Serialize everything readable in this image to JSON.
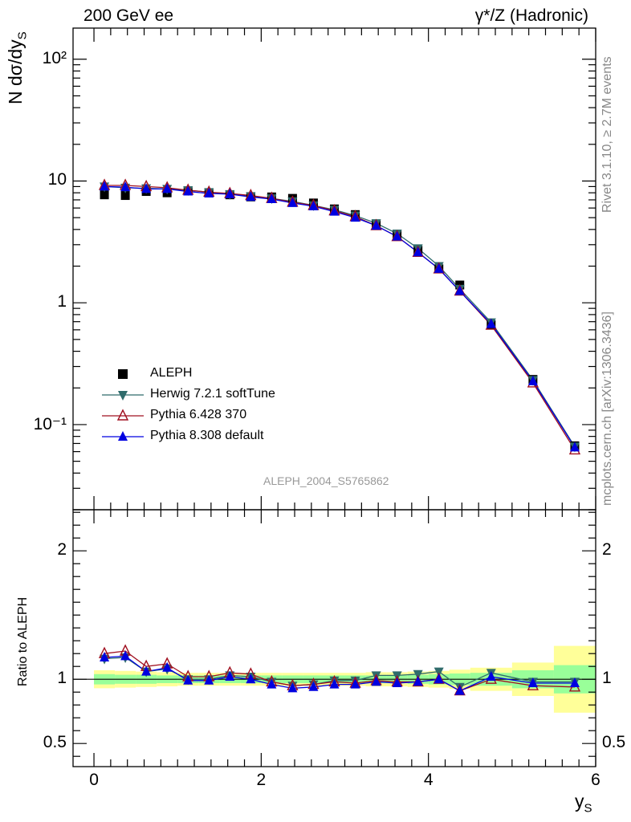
{
  "header": {
    "left_title": "200 GeV ee",
    "right_title": "γ*/Z (Hadronic)"
  },
  "side_texts": {
    "rivet": "Rivet 3.1.10, ≥ 2.7M events",
    "mcplots": "mcplots.cern.ch [arXiv:1306.3436]"
  },
  "watermark": "ALEPH_2004_S5765862",
  "colors": {
    "aleph": "#000000",
    "herwig": "#2f6b6b",
    "pythia6": "#a01020",
    "pythia8": "#0000e0",
    "band_inner": "#99ff99",
    "band_outer": "#ffff99"
  },
  "chart_data": [
    {
      "type": "scatter",
      "panel": "main",
      "title": "",
      "ylabel": "N dσ/dy_S",
      "xlabel": "",
      "yscale": "log",
      "xlim": [
        -0.25,
        6.0
      ],
      "ylim": [
        0.02,
        180
      ],
      "yticks": [
        0.1,
        1,
        10,
        100
      ],
      "ytick_labels": [
        "10⁻¹",
        "1",
        "10",
        "10²"
      ],
      "x": [
        0.125,
        0.375,
        0.625,
        0.875,
        1.125,
        1.375,
        1.625,
        1.875,
        2.125,
        2.375,
        2.625,
        2.875,
        3.125,
        3.375,
        3.625,
        3.875,
        4.125,
        4.375,
        4.75,
        5.25,
        5.75
      ],
      "series": [
        {
          "name": "ALEPH",
          "marker": "square",
          "values": [
            7.7,
            7.6,
            8.2,
            8.0,
            8.3,
            8.0,
            7.7,
            7.4,
            7.4,
            7.2,
            6.6,
            5.9,
            5.3,
            4.4,
            3.6,
            2.7,
            1.9,
            1.4,
            0.66,
            0.235,
            0.067
          ]
        },
        {
          "name": "Herwig 7.2.1 softTune",
          "marker": "triangle-down",
          "values": [
            9.0,
            8.8,
            8.7,
            8.6,
            8.4,
            8.1,
            7.8,
            7.5,
            7.2,
            6.8,
            6.3,
            5.8,
            5.2,
            4.5,
            3.7,
            2.8,
            2.0,
            1.3,
            0.69,
            0.232,
            0.066
          ]
        },
        {
          "name": "Pythia 6.428 370",
          "marker": "triangle-open",
          "values": [
            9.2,
            9.2,
            9.0,
            8.8,
            8.4,
            8.1,
            7.9,
            7.6,
            7.2,
            6.7,
            6.3,
            5.7,
            5.1,
            4.3,
            3.5,
            2.6,
            1.9,
            1.25,
            0.655,
            0.22,
            0.062
          ]
        },
        {
          "name": "Pythia 8.308 default",
          "marker": "triangle-up",
          "values": [
            9.0,
            8.9,
            8.6,
            8.6,
            8.2,
            7.9,
            7.8,
            7.4,
            7.1,
            6.6,
            6.2,
            5.6,
            5.0,
            4.3,
            3.5,
            2.6,
            1.9,
            1.25,
            0.67,
            0.227,
            0.065
          ]
        }
      ]
    },
    {
      "type": "line",
      "panel": "ratio",
      "ylabel": "Ratio to ALEPH",
      "xlabel": "y_S",
      "xlim": [
        -0.25,
        6.0
      ],
      "ylim": [
        0.32,
        2.32
      ],
      "yticks": [
        0.5,
        1,
        2
      ],
      "ytick_labels": [
        "0.5",
        "1",
        "2"
      ],
      "xticks": [
        0,
        2,
        4,
        6
      ],
      "xtick_labels": [
        "0",
        "2",
        "4",
        "6"
      ],
      "x": [
        0.125,
        0.375,
        0.625,
        0.875,
        1.125,
        1.375,
        1.625,
        1.875,
        2.125,
        2.375,
        2.625,
        2.875,
        3.125,
        3.375,
        3.625,
        3.875,
        4.125,
        4.375,
        4.75,
        5.25,
        5.75
      ],
      "bin_edges": [
        0,
        0.25,
        0.5,
        0.75,
        1.0,
        1.25,
        1.5,
        1.75,
        2.0,
        2.25,
        2.5,
        2.75,
        3.0,
        3.25,
        3.5,
        3.75,
        4.0,
        4.25,
        4.5,
        5.0,
        5.5,
        6.0
      ],
      "band_inner": [
        0.04,
        0.035,
        0.035,
        0.03,
        0.03,
        0.03,
        0.03,
        0.03,
        0.03,
        0.03,
        0.03,
        0.03,
        0.03,
        0.03,
        0.03,
        0.035,
        0.04,
        0.045,
        0.05,
        0.07,
        0.11
      ],
      "band_outer": [
        0.07,
        0.065,
        0.06,
        0.055,
        0.05,
        0.05,
        0.05,
        0.05,
        0.05,
        0.05,
        0.05,
        0.05,
        0.05,
        0.055,
        0.055,
        0.06,
        0.065,
        0.075,
        0.09,
        0.13,
        0.26
      ],
      "series": [
        {
          "name": "Herwig 7.2.1 softTune",
          "marker": "triangle-down",
          "values": [
            1.16,
            1.17,
            1.06,
            1.08,
            1.0,
            1.0,
            1.03,
            1.02,
            0.98,
            0.95,
            0.96,
            0.99,
            0.99,
            1.03,
            1.03,
            1.04,
            1.06,
            0.94,
            1.05,
            0.98,
            0.98
          ]
        },
        {
          "name": "Pythia 6.428 370",
          "marker": "triangle-open",
          "values": [
            1.2,
            1.22,
            1.1,
            1.12,
            1.02,
            1.02,
            1.05,
            1.04,
            0.98,
            0.95,
            0.96,
            0.98,
            0.97,
            0.99,
            0.98,
            0.98,
            1.0,
            0.91,
            1.0,
            0.95,
            0.94
          ]
        },
        {
          "name": "Pythia 8.308 default",
          "marker": "triangle-up",
          "values": [
            1.17,
            1.18,
            1.06,
            1.09,
            0.99,
            0.99,
            1.02,
            1.0,
            0.96,
            0.93,
            0.94,
            0.96,
            0.96,
            0.98,
            0.97,
            0.98,
            1.0,
            0.91,
            1.02,
            0.97,
            0.97
          ]
        }
      ]
    }
  ]
}
